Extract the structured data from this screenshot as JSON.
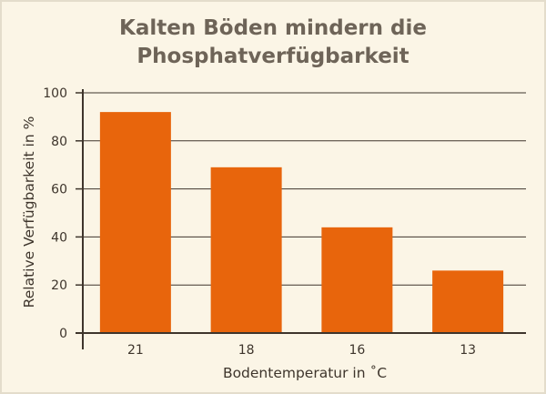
{
  "chart_data": {
    "type": "bar",
    "title_line1": "Kalten Böden mindern die",
    "title_line2": "Phosphatverfügbarkeit",
    "xlabel": "Bodentemperatur in ˚C",
    "ylabel": "Relative Verfügbarkeit in %",
    "categories": [
      "21",
      "18",
      "16",
      "13"
    ],
    "values": [
      92,
      69,
      44,
      26
    ],
    "ylim": [
      0,
      100
    ],
    "yticks": [
      0,
      20,
      40,
      60,
      80,
      100
    ],
    "grid": true,
    "colors": {
      "bar": "#e8650c",
      "grid": "#3e352c",
      "axis": "#3e352c",
      "background": "#fbf5e6"
    }
  }
}
